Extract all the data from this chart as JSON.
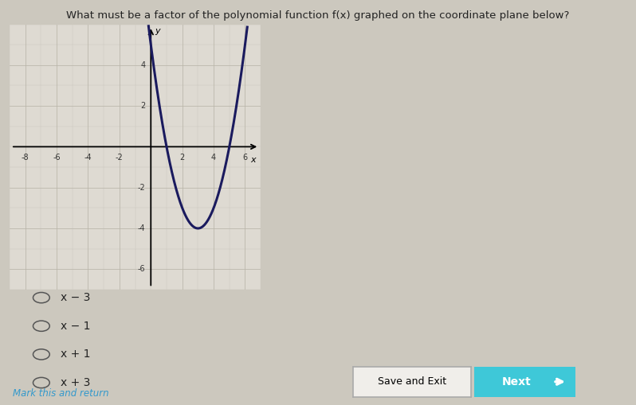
{
  "title": "What must be a factor of the polynomial function f(x) graphed on the coordinate plane below?",
  "choices": [
    "x − 3",
    "x − 1",
    "x + 1",
    "x + 3"
  ],
  "graph": {
    "xlim": [
      -9,
      7
    ],
    "ylim": [
      -7,
      6
    ],
    "xtick_vals": [
      -8,
      -6,
      -4,
      -2,
      2,
      4,
      6
    ],
    "ytick_vals": [
      4,
      2,
      -2,
      -4,
      -6
    ],
    "xlabel": "x",
    "ylabel": "y",
    "curve_color": "#1a1a5e",
    "curve_lw": 2.2,
    "poly_a": 1,
    "poly_b": -6,
    "poly_c": 5,
    "x_plot_min": -0.3,
    "x_plot_max": 6.15
  },
  "bg_color": "#ccc8be",
  "graph_bg": "#dedad2",
  "graph_border_color": "#aaa899",
  "grid_color": "#b8b4a8",
  "save_exit_bg": "#f0eeea",
  "save_exit_border": "#aaaaaa",
  "next_bg": "#3ec8d8",
  "next_arrow_color": "#ffffff",
  "mark_color": "#3399cc",
  "text_color": "#222222",
  "title_fontsize": 9.5,
  "choice_fontsize": 10,
  "tick_fontsize": 7
}
